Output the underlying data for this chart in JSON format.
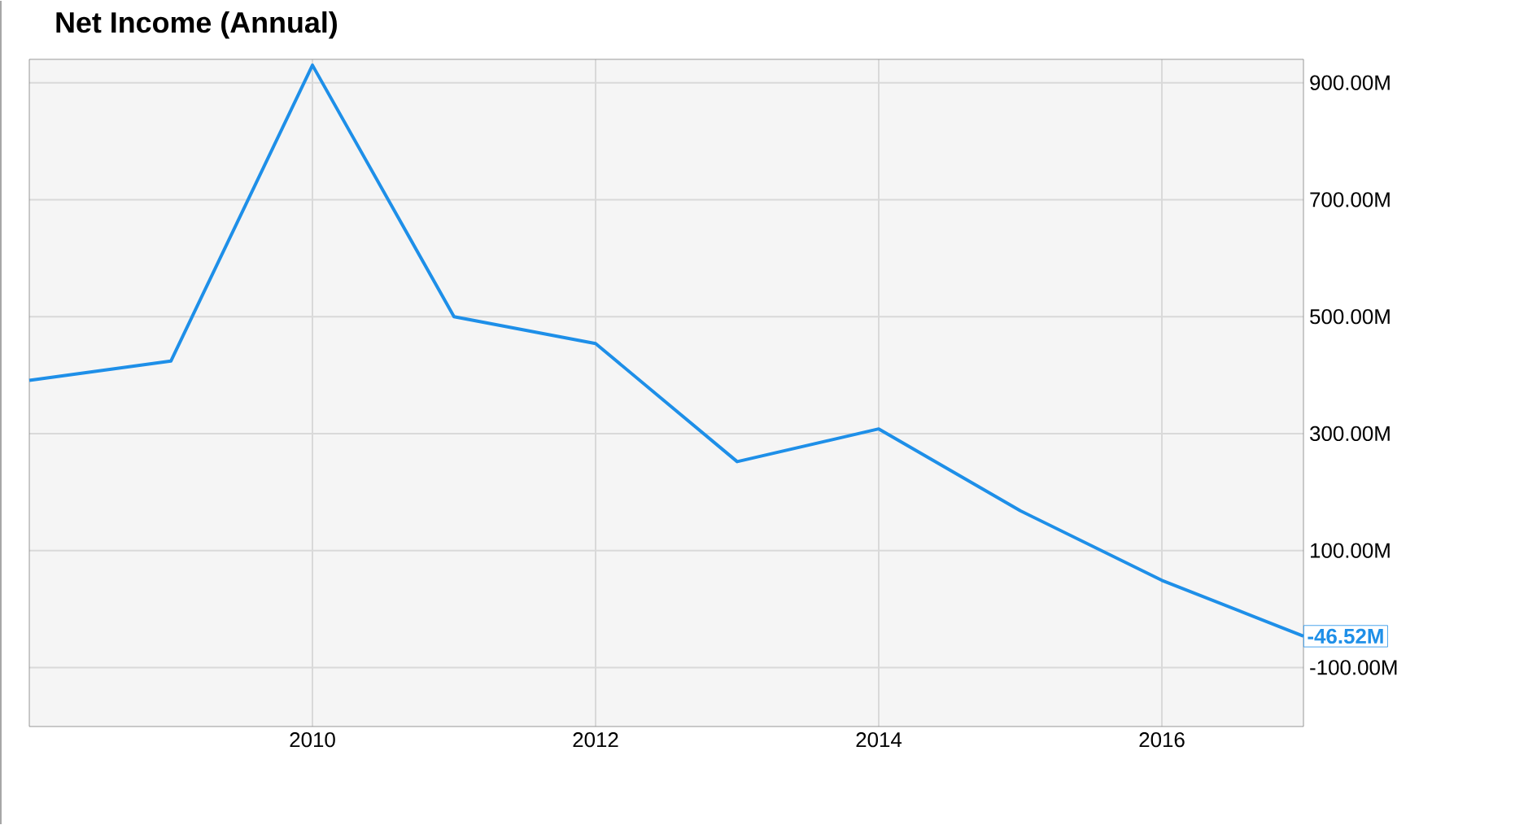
{
  "chart_data": {
    "type": "line",
    "title": "Net Income (Annual)",
    "x": [
      2008,
      2009,
      2010,
      2011,
      2012,
      2013,
      2014,
      2015,
      2016,
      2017
    ],
    "series": [
      {
        "color": "#1e8fe8",
        "values": [
          391,
          424,
          930,
          500,
          454,
          252,
          308,
          168,
          49,
          -46.52
        ],
        "value_labels": [
          null,
          null,
          null,
          null,
          null,
          null,
          null,
          null,
          null,
          "-46.52M"
        ]
      }
    ],
    "xlim": [
      2008,
      2017
    ],
    "xticks": [
      2010,
      2012,
      2014,
      2016
    ],
    "ylim": [
      -201,
      940
    ],
    "yticks": [
      {
        "value": -100,
        "label": "-100.00M"
      },
      {
        "value": 100,
        "label": "100.00M"
      },
      {
        "value": 300,
        "label": "300.00M"
      },
      {
        "value": 500,
        "label": "500.00M"
      },
      {
        "value": 700,
        "label": "700.00M"
      },
      {
        "value": 900,
        "label": "900.00M"
      }
    ],
    "grid": true,
    "marker": "none",
    "line_style": "solid"
  }
}
